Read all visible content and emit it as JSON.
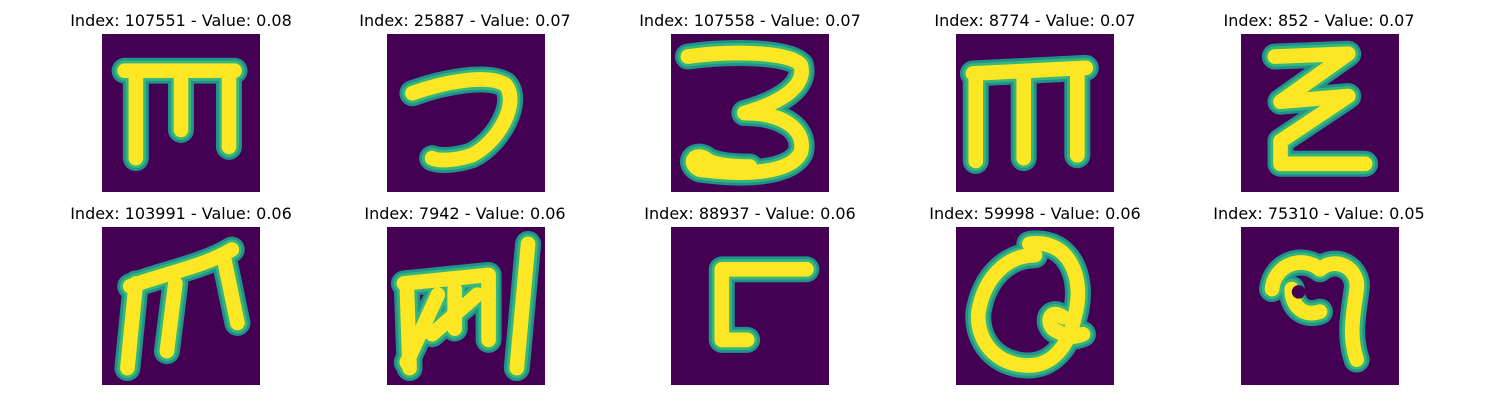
{
  "colors": {
    "background": "#440154",
    "stroke_core": "#fde725",
    "stroke_halo": "#35b779",
    "stroke_edge": "#21918c"
  },
  "panels": [
    {
      "title": "Index: 107551 - Value: 0.08",
      "glyph": "letter-m-with-top-bar"
    },
    {
      "title": "Index: 25887 - Value: 0.07",
      "glyph": "hook-stroke"
    },
    {
      "title": "Index: 107558 - Value: 0.07",
      "glyph": "digit-3-with-tail"
    },
    {
      "title": "Index: 8774 - Value: 0.07",
      "glyph": "letter-m-with-top-bar"
    },
    {
      "title": "Index: 852 - Value: 0.07",
      "glyph": "double-zigzag"
    },
    {
      "title": "Index: 103991 - Value: 0.06",
      "glyph": "cursive-m"
    },
    {
      "title": "Index: 7942 - Value: 0.06",
      "glyph": "scribbled-glyph-with-bar"
    },
    {
      "title": "Index: 88937 - Value: 0.06",
      "glyph": "bracket-shape"
    },
    {
      "title": "Index: 59998 - Value: 0.06",
      "glyph": "loop-glyph"
    },
    {
      "title": "Index: 75310 - Value: 0.05",
      "glyph": "blob-with-hook"
    }
  ]
}
